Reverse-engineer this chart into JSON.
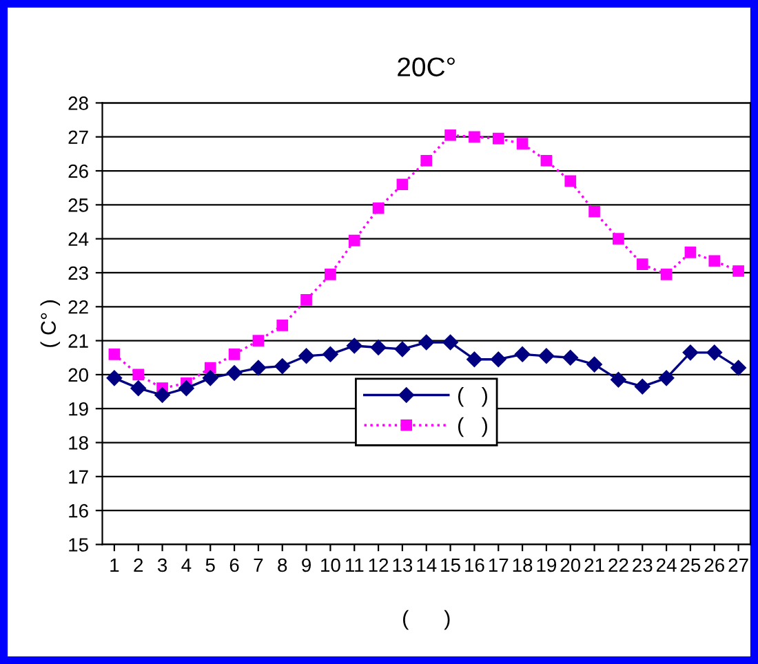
{
  "chart_data": {
    "type": "line",
    "title": "20C°",
    "ylabel": "( C° )",
    "xlabel": "(      )",
    "categories": [
      "1",
      "2",
      "3",
      "4",
      "5",
      "6",
      "7",
      "8",
      "9",
      "10",
      "11",
      "12",
      "13",
      "14",
      "15",
      "16",
      "17",
      "18",
      "19",
      "20",
      "21",
      "22",
      "23",
      "24",
      "25",
      "26",
      "27"
    ],
    "series": [
      {
        "name": "(   )",
        "color": "#000080",
        "marker": "diamond",
        "line_style": "solid",
        "values": [
          19.9,
          19.6,
          19.4,
          19.6,
          19.9,
          20.05,
          20.2,
          20.25,
          20.55,
          20.6,
          20.85,
          20.8,
          20.75,
          20.95,
          20.95,
          20.45,
          20.45,
          20.6,
          20.55,
          20.5,
          20.3,
          19.85,
          19.65,
          19.9,
          20.65,
          20.65,
          20.2
        ]
      },
      {
        "name": "(   )",
        "color": "#ff00ff",
        "marker": "square",
        "line_style": "dotted",
        "values": [
          20.6,
          20.0,
          19.6,
          19.75,
          20.2,
          20.6,
          21.0,
          21.45,
          22.2,
          22.95,
          23.95,
          24.9,
          25.6,
          26.3,
          27.05,
          27.0,
          26.95,
          26.8,
          26.3,
          25.7,
          24.8,
          24.0,
          23.25,
          22.95,
          23.6,
          23.35,
          23.05
        ]
      }
    ],
    "ylim": [
      15,
      28
    ],
    "yticks": [
      15,
      16,
      17,
      18,
      19,
      20,
      21,
      22,
      23,
      24,
      25,
      26,
      27,
      28
    ],
    "grid": "y",
    "legend": "center"
  }
}
